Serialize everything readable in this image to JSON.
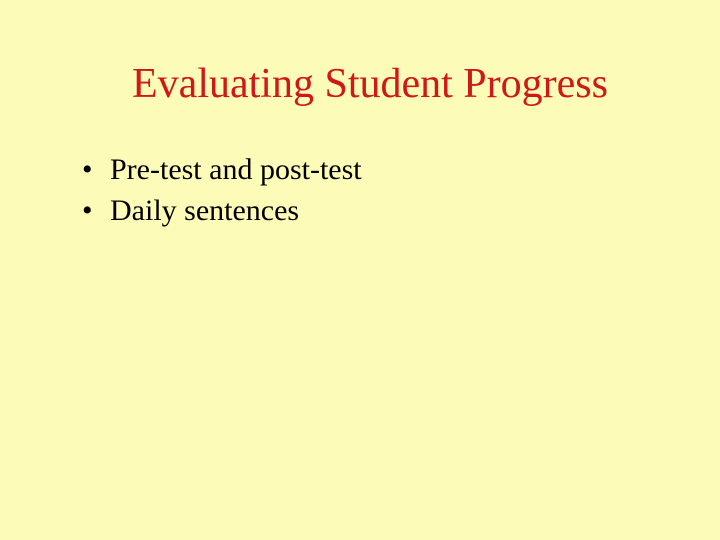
{
  "slide": {
    "background_color": "#fdfbb8",
    "title": {
      "text": "Evaluating Student Progress",
      "color": "#d01818",
      "fontsize": 42,
      "font_family": "Times New Roman"
    },
    "bullets": [
      {
        "text": "Pre-test and post-test"
      },
      {
        "text": "Daily sentences"
      }
    ],
    "bullet_style": {
      "color": "#000000",
      "fontsize": 30,
      "marker": "•"
    }
  }
}
